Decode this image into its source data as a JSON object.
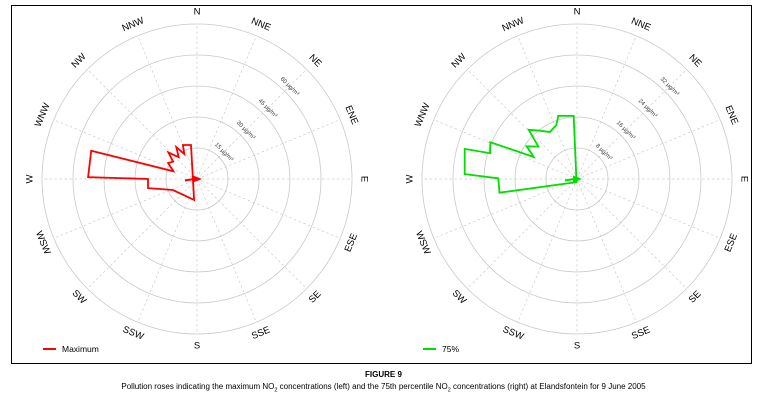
{
  "figure": {
    "label": "FIGURE 9",
    "caption": {
      "pre": "Pollution roses indicating the maximum NO",
      "sub1": "2",
      "mid": " concentrations (left) and the 75th percentile NO",
      "sub2": "2",
      "post": " concentrations (right) at Elandsfontein for 9 June 2005"
    }
  },
  "legend": [
    {
      "label": "Maximum",
      "color": "#ff0000"
    },
    {
      "label": "75%",
      "color": "#00dd00"
    }
  ],
  "chart_data": [
    {
      "type": "polar-rose",
      "series_label": "Maximum",
      "color": "#ff0000",
      "units": "µg/m³",
      "ring_values": [
        15,
        30,
        45,
        60,
        75
      ],
      "ring_labels": [
        "15 µg/m³",
        "30 µg/m³",
        "45 µg/m³",
        "60 µg/m³"
      ],
      "max_value": 75,
      "directions": [
        "N",
        "NNE",
        "NE",
        "ENE",
        "E",
        "ESE",
        "SE",
        "SSE",
        "S",
        "SSW",
        "SW",
        "WSW",
        "W",
        "WNW",
        "NW",
        "NNW"
      ],
      "values": {
        "N": 17,
        "NNE": 1,
        "NE": 1,
        "ENE": 1,
        "E": 1,
        "ESE": 1,
        "SE": 1,
        "SSE": 1,
        "S": 10,
        "SSW": 1,
        "SW": 13,
        "WSW": 24,
        "W": 53,
        "WNW": 15,
        "NW": 19,
        "NNW": 18
      },
      "outline": [
        [
          350,
          16.7
        ],
        [
          337.5,
          17.8
        ],
        [
          333,
          13.5
        ],
        [
          327,
          18.4
        ],
        [
          320,
          13.8
        ],
        [
          313,
          18.9
        ],
        [
          306,
          14.3
        ],
        [
          299,
          16
        ],
        [
          288,
          12
        ],
        [
          285,
          53
        ],
        [
          271,
          52.7
        ],
        [
          270,
          23.7
        ],
        [
          259.5,
          24.1
        ],
        [
          245.5,
          12.8
        ],
        [
          188,
          10.2
        ]
      ]
    },
    {
      "type": "polar-rose",
      "series_label": "75%",
      "color": "#00dd00",
      "units": "µg/m³",
      "ring_values": [
        8,
        16,
        24,
        32,
        40
      ],
      "ring_labels": [
        "8 µg/m³",
        "16 µg/m³",
        "24 µg/m³",
        "32 µg/m³"
      ],
      "max_value": 40,
      "directions": [
        "N",
        "NNE",
        "NE",
        "ENE",
        "E",
        "ESE",
        "SE",
        "SSE",
        "S",
        "SSW",
        "SW",
        "WSW",
        "W",
        "WNW",
        "NW",
        "NNW"
      ],
      "values": {
        "N": 16,
        "NNE": 1,
        "NE": 1,
        "ENE": 1,
        "E": 1,
        "ESE": 1,
        "SE": 1,
        "SSE": 1,
        "S": 1,
        "SSW": 1,
        "SW": 2,
        "WSW": 20,
        "W": 30,
        "WNW": 24,
        "NW": 18,
        "NNW": 17
      },
      "outline": [
        [
          357,
          16.3
        ],
        [
          343.5,
          17
        ],
        [
          339,
          14.9
        ],
        [
          330,
          14
        ],
        [
          322.5,
          15.7
        ],
        [
          315.5,
          17.8
        ],
        [
          310,
          13
        ],
        [
          303,
          15.5
        ],
        [
          297,
          12.5
        ],
        [
          293,
          24.3
        ],
        [
          286.5,
          23.4
        ],
        [
          285,
          30
        ],
        [
          272.5,
          29
        ],
        [
          270.5,
          20.3
        ],
        [
          260,
          20.3
        ],
        [
          190,
          0.8
        ]
      ]
    }
  ]
}
